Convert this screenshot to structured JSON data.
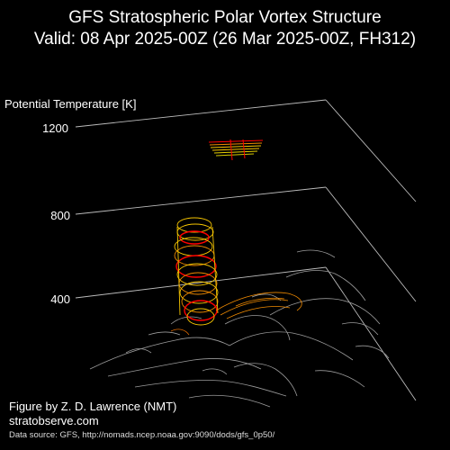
{
  "header": {
    "title_line1": "GFS Stratospheric Polar Vortex Structure",
    "title_line2": "Valid: 08 Apr 2025-00Z  (26 Mar 2025-00Z, FH312)"
  },
  "footer": {
    "credit": "Figure by Z. D. Lawrence (NMT)",
    "site": "stratobserve.com",
    "source": "Data source: GFS, http://nomads.ncep.noaa.gov:9090/dods/gfs_0p50/"
  },
  "colors": {
    "background": "#000000",
    "text": "#ffffff",
    "grid": "#bbbbbb",
    "coastline": "#9a9a9a",
    "vortex_core": "#ff0000",
    "vortex_outer": "#f5c400",
    "vortex_mid": "#f08a00"
  },
  "chart_data": {
    "type": "3d-surface",
    "title": "GFS Stratospheric Polar Vortex Structure",
    "subtitle": "Valid: 08 Apr 2025-00Z  (26 Mar 2025-00Z, FH312)",
    "zlabel": "Potential Temperature [K]",
    "zticks": [
      400,
      800,
      1200
    ],
    "zlim": [
      400,
      1200
    ],
    "grid": true,
    "base_map": "Northern Hemisphere coastlines"
  }
}
